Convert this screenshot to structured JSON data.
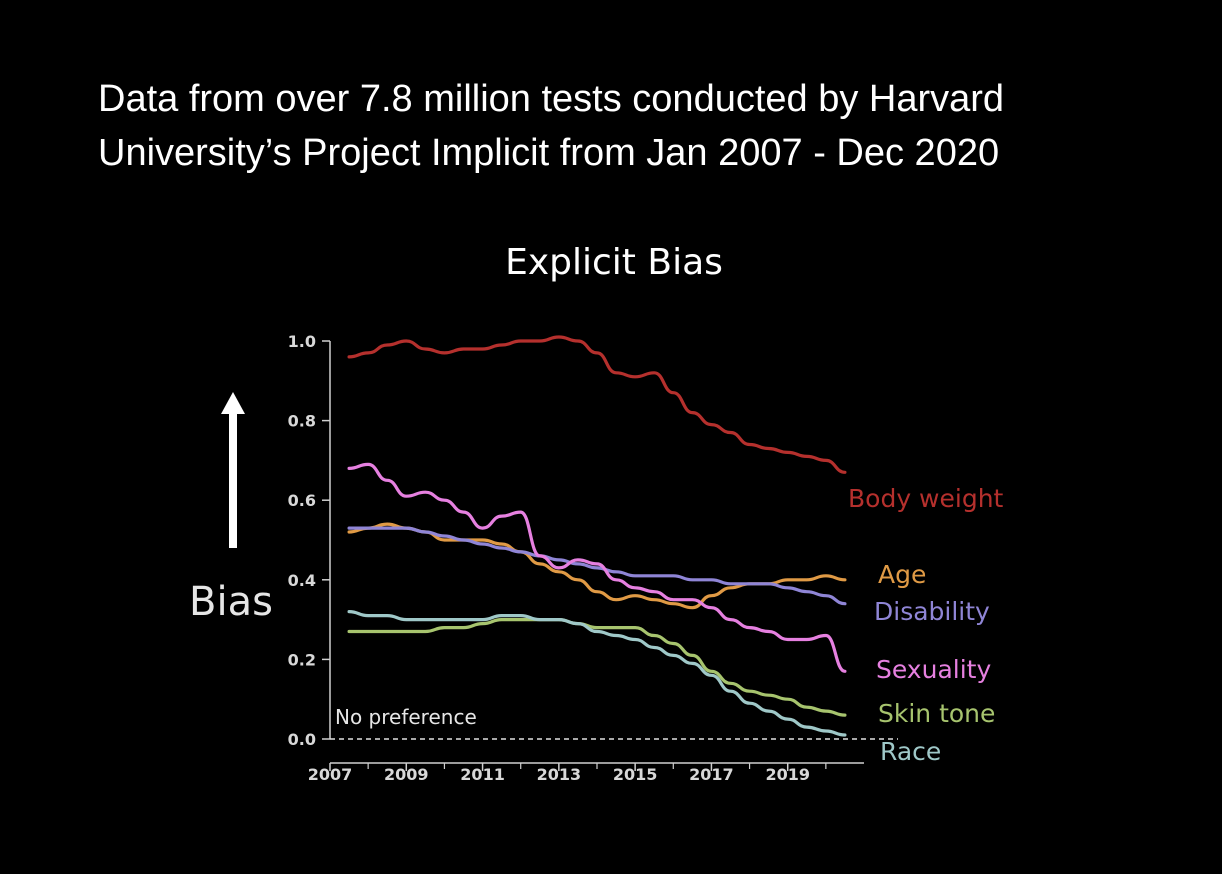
{
  "headline": {
    "line1": "Data from over 7.8 million tests conducted by Harvard",
    "line2": "University’s Project Implicit from Jan 2007 - Dec 2020"
  },
  "chart_data": {
    "type": "line",
    "title": "Explicit Bias",
    "ylabel": "Bias",
    "xlabel": "",
    "xlim": [
      2007,
      2021
    ],
    "ylim": [
      0,
      1.0
    ],
    "x_ticks": [
      "2007",
      "2009",
      "2011",
      "2013",
      "2015",
      "2017",
      "2019"
    ],
    "y_ticks": [
      "0.0",
      "0.2",
      "0.4",
      "0.6",
      "0.8",
      "1.0"
    ],
    "baseline_label": "No preference",
    "baseline_value": 0.0,
    "x": [
      2007.5,
      2008,
      2008.5,
      2009,
      2009.5,
      2010,
      2010.5,
      2011,
      2011.5,
      2012,
      2012.5,
      2013,
      2013.5,
      2014,
      2014.5,
      2015,
      2015.5,
      2016,
      2016.5,
      2017,
      2017.5,
      2018,
      2018.5,
      2019,
      2019.5,
      2020,
      2020.5
    ],
    "series": [
      {
        "name": "Body weight",
        "color": "#b5302d",
        "values": [
          0.96,
          0.97,
          0.99,
          1.0,
          0.98,
          0.97,
          0.98,
          0.98,
          0.99,
          1.0,
          1.0,
          1.01,
          1.0,
          0.97,
          0.92,
          0.91,
          0.92,
          0.87,
          0.82,
          0.79,
          0.77,
          0.74,
          0.73,
          0.72,
          0.71,
          0.7,
          0.67
        ]
      },
      {
        "name": "Age",
        "color": "#e09a45",
        "values": [
          0.52,
          0.53,
          0.54,
          0.53,
          0.52,
          0.5,
          0.5,
          0.5,
          0.49,
          0.47,
          0.44,
          0.42,
          0.4,
          0.37,
          0.35,
          0.36,
          0.35,
          0.34,
          0.33,
          0.36,
          0.38,
          0.39,
          0.39,
          0.4,
          0.4,
          0.41,
          0.4
        ]
      },
      {
        "name": "Disability",
        "color": "#8f85d6",
        "values": [
          0.53,
          0.53,
          0.53,
          0.53,
          0.52,
          0.51,
          0.5,
          0.49,
          0.48,
          0.47,
          0.46,
          0.45,
          0.44,
          0.43,
          0.42,
          0.41,
          0.41,
          0.41,
          0.4,
          0.4,
          0.39,
          0.39,
          0.39,
          0.38,
          0.37,
          0.36,
          0.34
        ]
      },
      {
        "name": "Sexuality",
        "color": "#e680e0",
        "values": [
          0.68,
          0.69,
          0.65,
          0.61,
          0.62,
          0.6,
          0.57,
          0.53,
          0.56,
          0.57,
          0.46,
          0.43,
          0.45,
          0.44,
          0.4,
          0.38,
          0.37,
          0.35,
          0.35,
          0.33,
          0.3,
          0.28,
          0.27,
          0.25,
          0.25,
          0.26,
          0.17
        ]
      },
      {
        "name": "Skin tone",
        "color": "#a7c46e",
        "values": [
          0.27,
          0.27,
          0.27,
          0.27,
          0.27,
          0.28,
          0.28,
          0.29,
          0.3,
          0.3,
          0.3,
          0.3,
          0.29,
          0.28,
          0.28,
          0.28,
          0.26,
          0.24,
          0.21,
          0.17,
          0.14,
          0.12,
          0.11,
          0.1,
          0.08,
          0.07,
          0.06
        ]
      },
      {
        "name": "Race",
        "color": "#9fc8c8",
        "values": [
          0.32,
          0.31,
          0.31,
          0.3,
          0.3,
          0.3,
          0.3,
          0.3,
          0.31,
          0.31,
          0.3,
          0.3,
          0.29,
          0.27,
          0.26,
          0.25,
          0.23,
          0.21,
          0.19,
          0.16,
          0.12,
          0.09,
          0.07,
          0.05,
          0.03,
          0.02,
          0.01
        ]
      }
    ]
  }
}
